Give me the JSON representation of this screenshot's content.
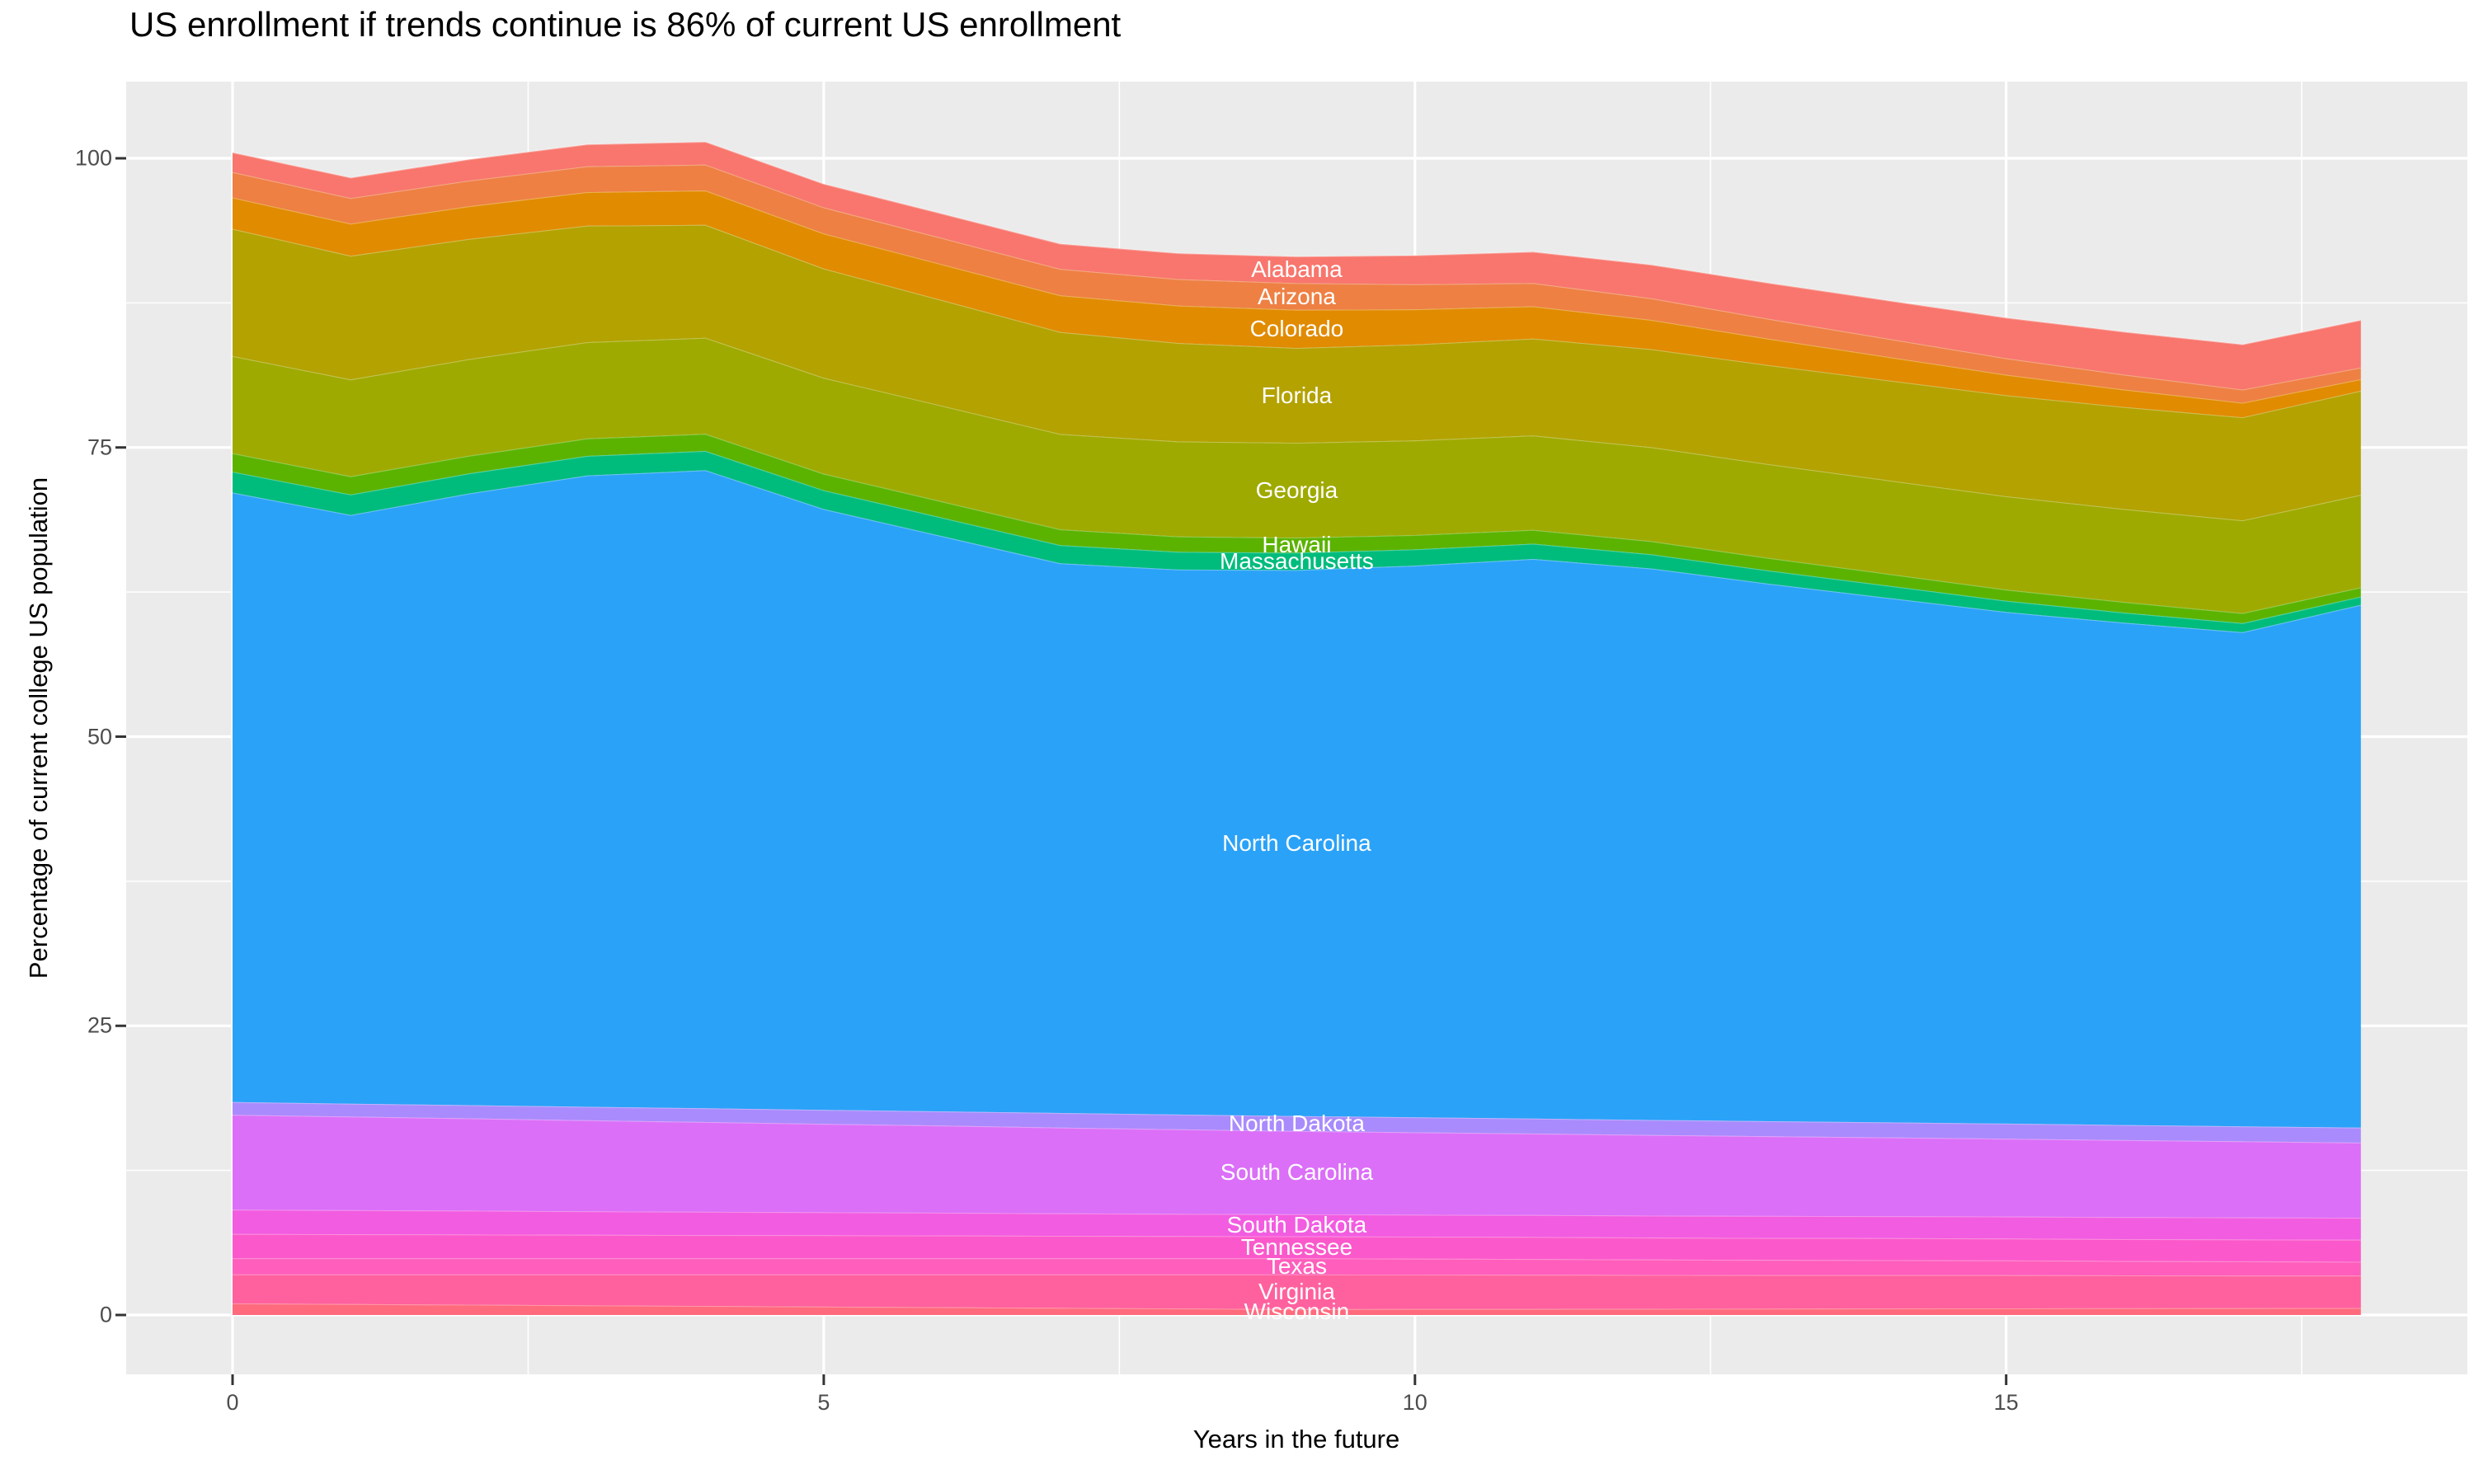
{
  "title": "US enrollment if trends continue is 86% of current US enrollment",
  "x_axis": {
    "label": "Years in the future",
    "tick_labels": [
      "0",
      "5",
      "10",
      "15"
    ]
  },
  "y_axis": {
    "label": "Percentage of current college US population",
    "tick_labels": [
      "0",
      "25",
      "50",
      "75",
      "100"
    ]
  },
  "styles": {
    "panel_background": "#EBEBEB",
    "grid_color": "#FFFFFF",
    "tick_mark_color": "#333333",
    "tick_text_color": "#4D4D4D",
    "title_color": "#000000",
    "state_label_color": "#FFFFFF"
  },
  "chart_data": {
    "type": "area",
    "stacked": true,
    "stack_order": "first_series_on_top",
    "title": "US enrollment if trends continue is 86% of current US enrollment",
    "xlabel": "Years in the future",
    "ylabel": "Percentage of current college US population",
    "xlim": [
      0,
      18
    ],
    "ylim": [
      0,
      100
    ],
    "grid": true,
    "x_major_ticks": [
      0,
      5,
      10,
      15
    ],
    "x_minor_gridlines": [
      2.5,
      7.5,
      12.5,
      17.5
    ],
    "y_major_ticks": [
      0,
      25,
      50,
      75,
      100
    ],
    "y_minor_gridlines": [
      12.5,
      37.5,
      62.5,
      87.5
    ],
    "legend_position": "none",
    "annotation_labels_at_year": 9,
    "final_total_pct": 86,
    "x": [
      0,
      1,
      2,
      3,
      4,
      5,
      6,
      7,
      8,
      9,
      10,
      11,
      12,
      13,
      14,
      15,
      16,
      17,
      18
    ],
    "series": [
      {
        "name": "Alabama",
        "color": "#F8766D",
        "values": [
          1.7,
          1.77,
          1.83,
          1.9,
          1.97,
          2.03,
          2.1,
          2.17,
          2.23,
          2.3,
          2.5,
          2.7,
          2.9,
          3.1,
          3.3,
          3.5,
          3.7,
          3.9,
          4.1
        ]
      },
      {
        "name": "Arizona",
        "color": "#EE8044",
        "values": [
          2.2,
          2.21,
          2.22,
          2.23,
          2.24,
          2.26,
          2.27,
          2.28,
          2.29,
          2.3,
          2.16,
          2.01,
          1.87,
          1.72,
          1.58,
          1.43,
          1.29,
          1.14,
          1.0
        ]
      },
      {
        "name": "Colorado",
        "color": "#E18B00",
        "values": [
          2.7,
          2.77,
          2.83,
          2.9,
          2.97,
          3.03,
          3.1,
          3.17,
          3.23,
          3.3,
          3.04,
          2.79,
          2.53,
          2.28,
          2.02,
          1.77,
          1.51,
          1.26,
          1.0
        ]
      },
      {
        "name": "Florida",
        "color": "#B3A200",
        "values": [
          11.0,
          10.69,
          10.38,
          10.07,
          9.76,
          9.44,
          9.13,
          8.82,
          8.51,
          8.2,
          8.29,
          8.38,
          8.47,
          8.56,
          8.64,
          8.73,
          8.82,
          8.91,
          9.0
        ]
      },
      {
        "name": "Georgia",
        "color": "#9FAA00",
        "values": [
          8.4,
          8.38,
          8.36,
          8.33,
          8.31,
          8.29,
          8.27,
          8.24,
          8.22,
          8.2,
          8.18,
          8.16,
          8.13,
          8.11,
          8.09,
          8.07,
          8.04,
          8.02,
          8.0
        ]
      },
      {
        "name": "Hawaii",
        "color": "#5BB300",
        "values": [
          1.6,
          1.57,
          1.53,
          1.5,
          1.47,
          1.43,
          1.4,
          1.37,
          1.33,
          1.3,
          1.24,
          1.19,
          1.13,
          1.08,
          1.02,
          0.97,
          0.91,
          0.86,
          0.8
        ]
      },
      {
        "name": "Massachusetts",
        "color": "#00BC7C",
        "values": [
          1.8,
          1.77,
          1.73,
          1.7,
          1.67,
          1.63,
          1.6,
          1.57,
          1.53,
          1.5,
          1.41,
          1.32,
          1.23,
          1.14,
          1.06,
          0.97,
          0.88,
          0.79,
          0.7
        ]
      },
      {
        "name": "North Carolina",
        "color": "#2AA2F8",
        "values": [
          52.7,
          50.89,
          52.88,
          54.57,
          55.16,
          51.94,
          49.73,
          47.52,
          47.11,
          47.2,
          47.69,
          48.38,
          47.67,
          46.46,
          45.34,
          44.23,
          43.42,
          42.71,
          45.2
        ]
      },
      {
        "name": "North Dakota",
        "color": "#A98BFD",
        "values": [
          1.1,
          1.12,
          1.14,
          1.17,
          1.19,
          1.21,
          1.23,
          1.26,
          1.28,
          1.3,
          1.3,
          1.3,
          1.3,
          1.3,
          1.3,
          1.3,
          1.3,
          1.3,
          1.3
        ]
      },
      {
        "name": "South Carolina",
        "color": "#DB6FF8",
        "values": [
          8.2,
          8.09,
          7.98,
          7.87,
          7.76,
          7.64,
          7.53,
          7.42,
          7.31,
          7.2,
          7.12,
          7.04,
          6.97,
          6.89,
          6.81,
          6.73,
          6.66,
          6.58,
          6.5
        ]
      },
      {
        "name": "South Dakota",
        "color": "#F25CE1",
        "values": [
          2.1,
          2.08,
          2.06,
          2.03,
          2.01,
          1.99,
          1.97,
          1.94,
          1.92,
          1.9,
          1.9,
          1.9,
          1.9,
          1.9,
          1.9,
          1.9,
          1.9,
          1.9,
          1.9
        ]
      },
      {
        "name": "Tennessee",
        "color": "#FB59CB",
        "values": [
          2.1,
          2.08,
          2.06,
          2.03,
          2.01,
          1.99,
          1.97,
          1.94,
          1.92,
          1.9,
          1.9,
          1.9,
          1.9,
          1.9,
          1.9,
          1.9,
          1.9,
          1.9,
          1.9
        ]
      },
      {
        "name": "Texas",
        "color": "#FF5EBC",
        "values": [
          1.4,
          1.4,
          1.4,
          1.4,
          1.4,
          1.4,
          1.4,
          1.4,
          1.4,
          1.4,
          1.38,
          1.36,
          1.33,
          1.31,
          1.29,
          1.27,
          1.24,
          1.22,
          1.2
        ]
      },
      {
        "name": "Virginia",
        "color": "#FF619E",
        "values": [
          2.5,
          2.56,
          2.61,
          2.67,
          2.72,
          2.78,
          2.83,
          2.89,
          2.94,
          3.0,
          2.98,
          2.96,
          2.93,
          2.91,
          2.89,
          2.87,
          2.84,
          2.82,
          2.8
        ]
      },
      {
        "name": "Wisconsin",
        "color": "#FF6A7D",
        "values": [
          1.0,
          0.94,
          0.89,
          0.83,
          0.78,
          0.72,
          0.67,
          0.61,
          0.56,
          0.5,
          0.51,
          0.52,
          0.53,
          0.54,
          0.56,
          0.57,
          0.58,
          0.59,
          0.6
        ]
      }
    ]
  }
}
